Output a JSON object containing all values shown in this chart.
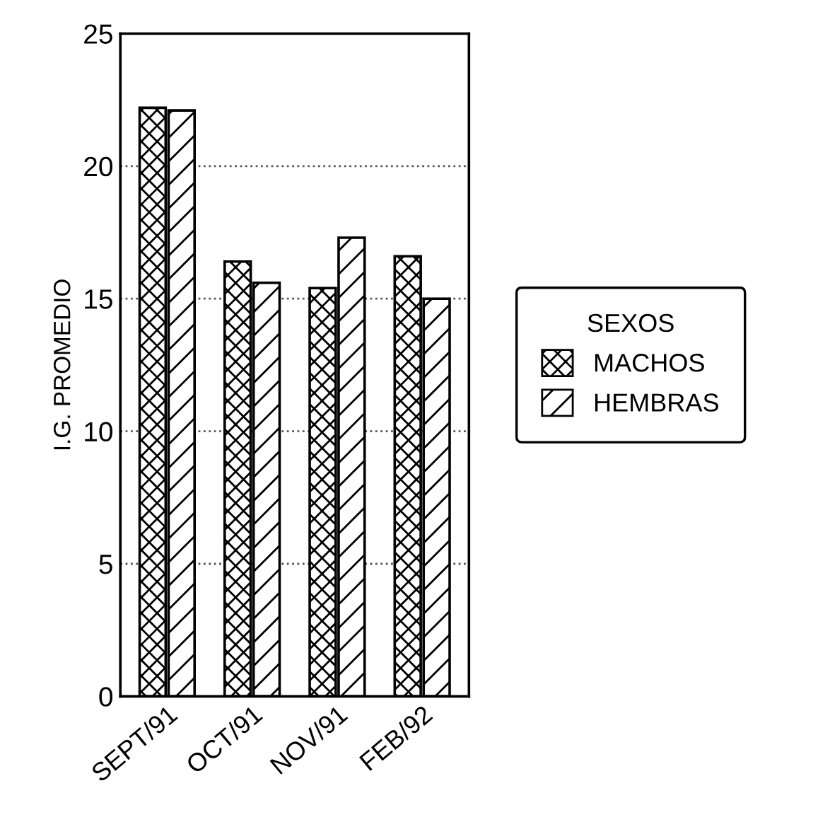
{
  "chart_data": {
    "type": "bar",
    "ylabel": "I.G. PROMEDIO",
    "legend_title": "SEXOS",
    "categories": [
      "SEPT/91",
      "OCT/91",
      "NOV/91",
      "FEB/92"
    ],
    "series": [
      {
        "name": "MACHOS",
        "color": "#000000",
        "values": [
          22.2,
          16.4,
          15.4,
          16.6
        ]
      },
      {
        "name": "HEMBRAS",
        "color": "#000000",
        "values": [
          22.1,
          15.6,
          17.3,
          15.0
        ]
      }
    ],
    "ylim": [
      0,
      25
    ],
    "yticks": [
      0,
      5,
      10,
      15,
      20,
      25
    ],
    "grid": "y",
    "legend": "right"
  }
}
